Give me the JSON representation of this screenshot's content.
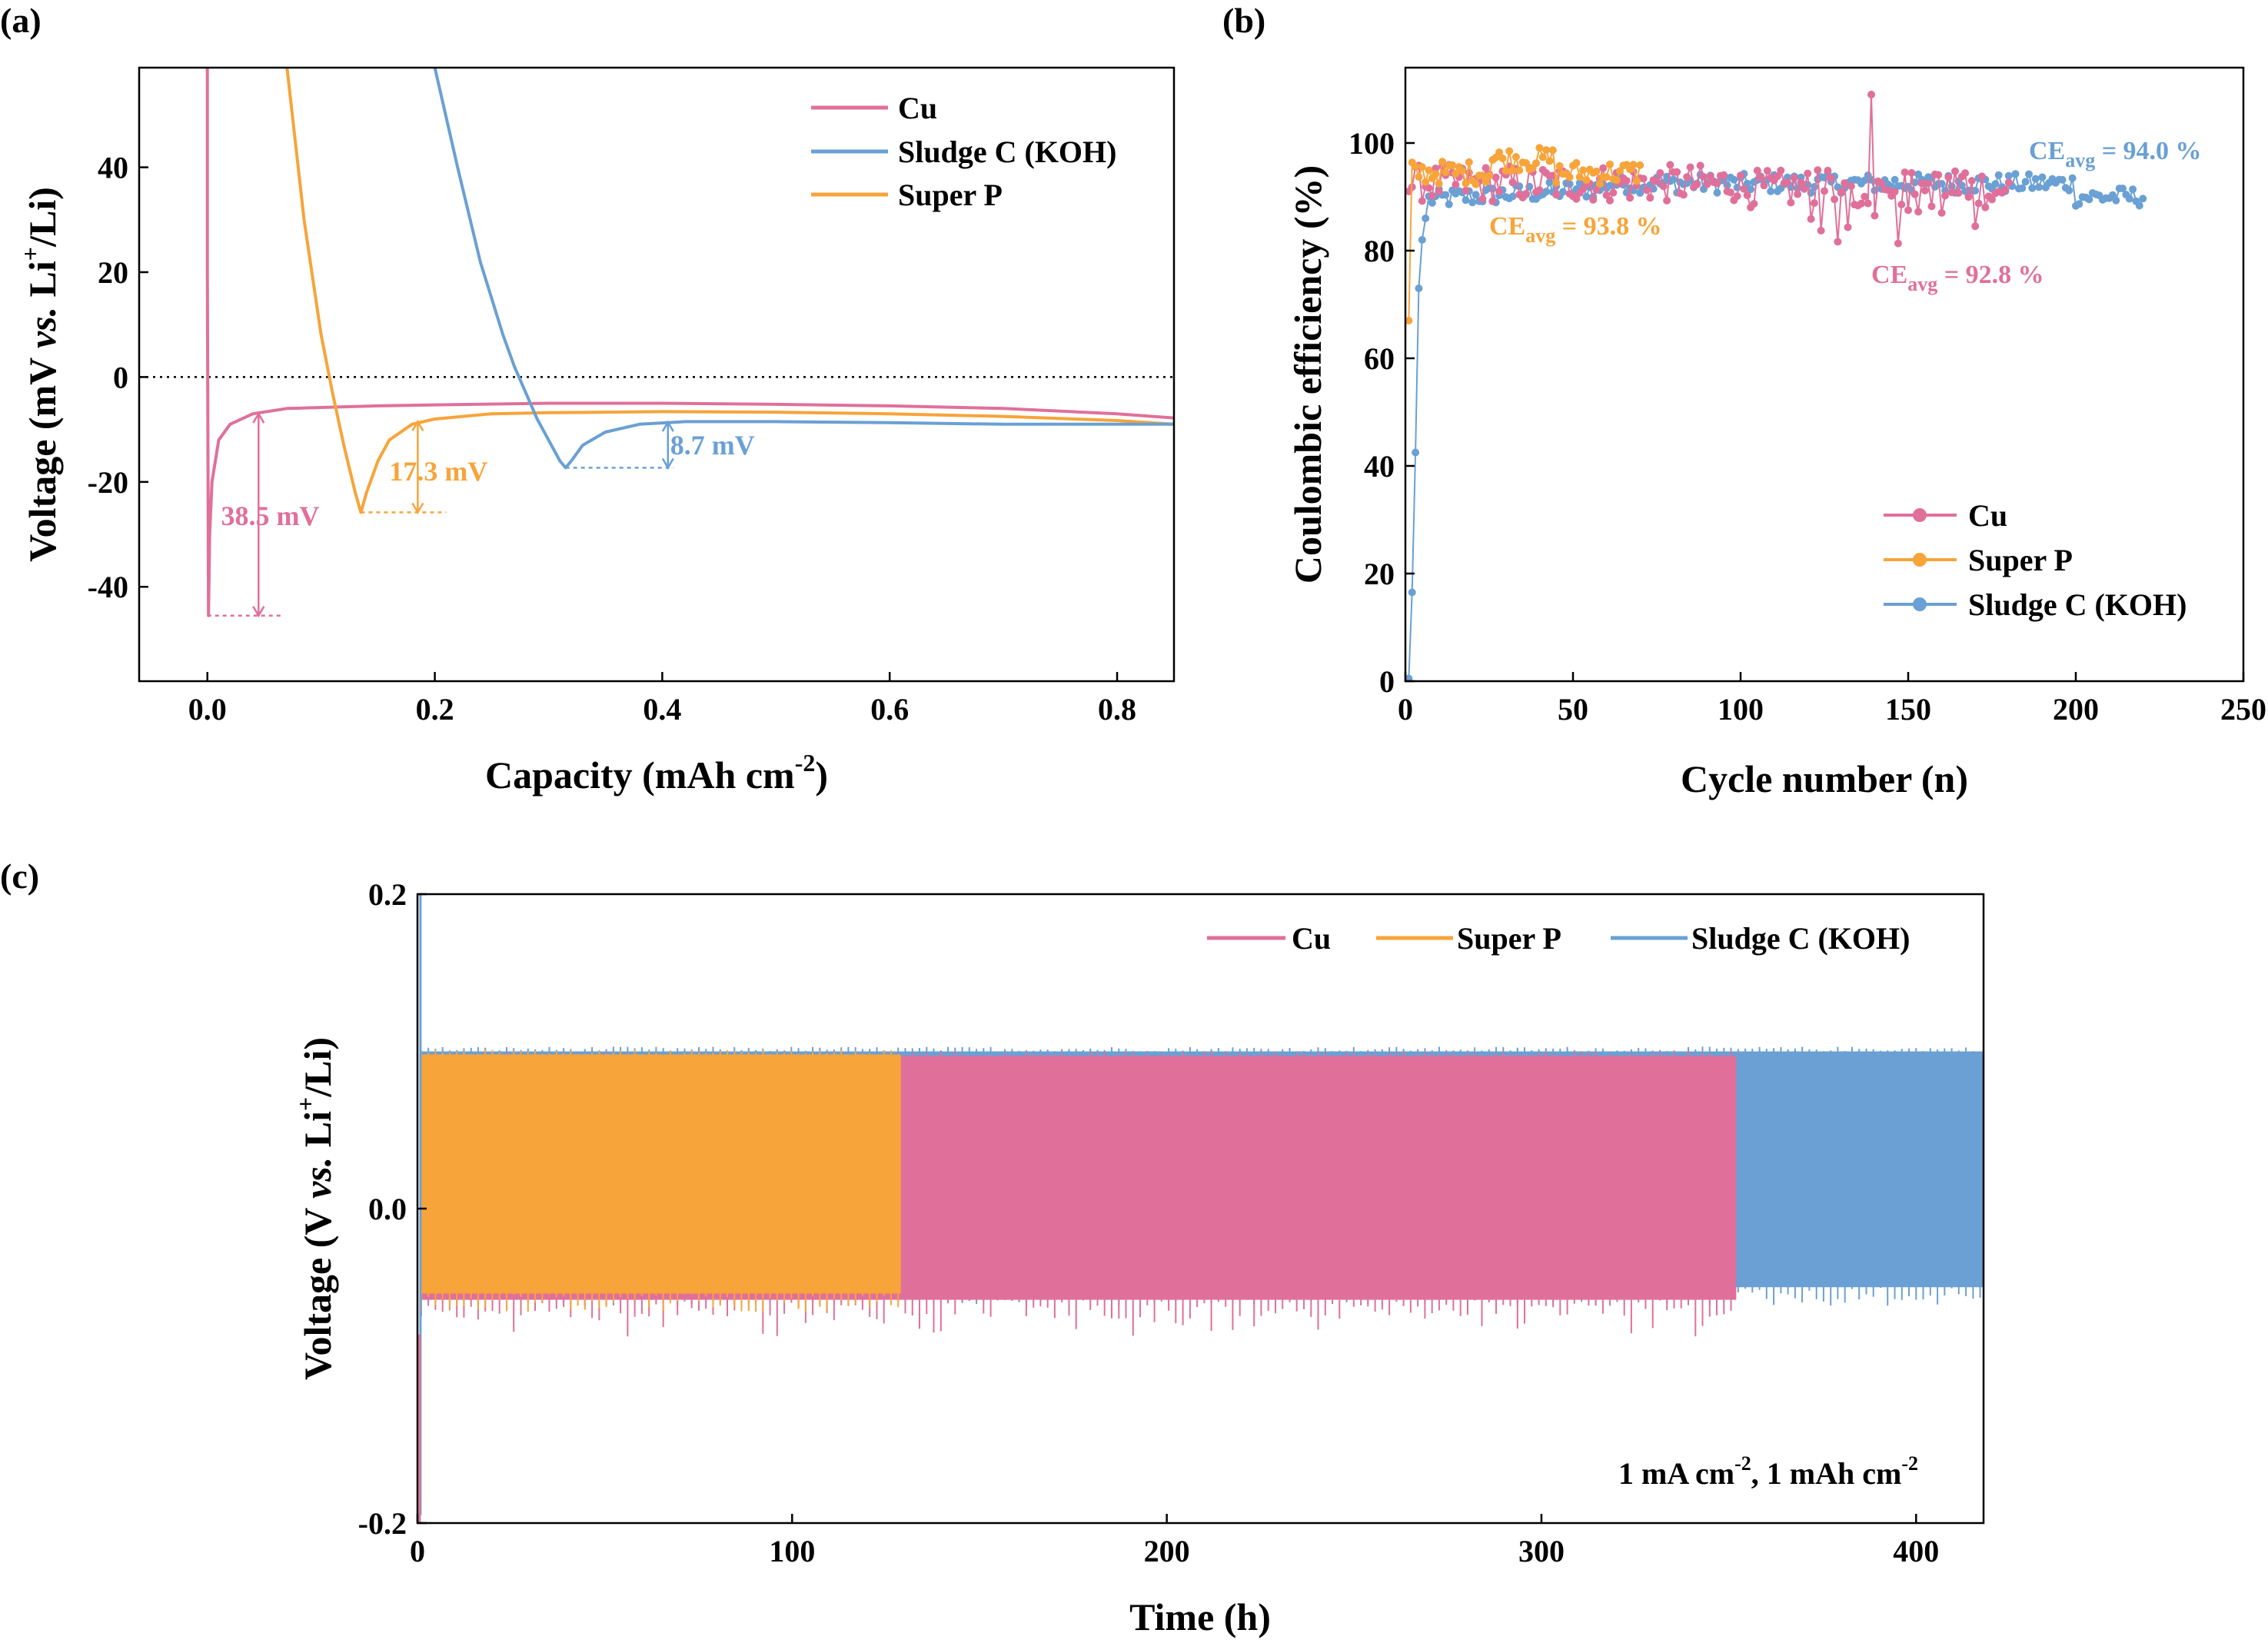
{
  "colors": {
    "cu": "#e0709a",
    "superp": "#f7a43a",
    "sludge": "#6aa0d4",
    "axis": "#000000",
    "zero_line": "#000000"
  },
  "chart_data": [
    {
      "panel": "(a)",
      "type": "line",
      "xlabel_main": "Capacity (mAh cm",
      "xlabel_sup": "-2",
      "xlabel_end": ")",
      "ylabel_main": "Voltage (mV ",
      "ylabel_vs": "vs.",
      "ylabel_li": " Li",
      "ylabel_sup": "+",
      "ylabel_end": "/Li)",
      "xlim": [
        -0.06,
        0.85
      ],
      "ylim": [
        -58,
        59
      ],
      "x_ticks": [
        0.0,
        0.2,
        0.4,
        0.6,
        0.8
      ],
      "x_tick_labels": [
        "0.0",
        "0.2",
        "0.4",
        "0.6",
        "0.8"
      ],
      "y_ticks": [
        -40,
        -20,
        0,
        20,
        40
      ],
      "y_tick_labels": [
        "-40",
        "-20",
        "0",
        "20",
        "40"
      ],
      "zero_line": true,
      "legend": {
        "position": "top-right",
        "entries": [
          "Cu",
          "Sludge C (KOH)",
          "Super P"
        ]
      },
      "series": [
        {
          "name": "Cu",
          "color_key": "cu",
          "x": [
            0.0,
            0.0,
            0.001,
            0.002,
            0.004,
            0.01,
            0.02,
            0.04,
            0.07,
            0.1,
            0.15,
            0.2,
            0.3,
            0.4,
            0.5,
            0.6,
            0.7,
            0.8,
            0.85
          ],
          "y": [
            59,
            20,
            -45.5,
            -30,
            -20,
            -12,
            -9,
            -7,
            -6,
            -5.8,
            -5.5,
            -5.3,
            -5.0,
            -5.0,
            -5.2,
            -5.5,
            -6.0,
            -7.0,
            -7.8
          ]
        },
        {
          "name": "Super P",
          "color_key": "superp",
          "x": [
            0.07,
            0.085,
            0.1,
            0.11,
            0.12,
            0.13,
            0.135,
            0.14,
            0.15,
            0.16,
            0.18,
            0.2,
            0.25,
            0.3,
            0.4,
            0.5,
            0.6,
            0.7,
            0.8,
            0.85
          ],
          "y": [
            59,
            30,
            8,
            -3,
            -13,
            -22,
            -25.8,
            -22,
            -16,
            -12,
            -9,
            -8,
            -7,
            -6.8,
            -6.6,
            -6.7,
            -7.0,
            -7.5,
            -8.3,
            -9.0
          ]
        },
        {
          "name": "Sludge C (KOH)",
          "color_key": "sludge",
          "x": [
            0.2,
            0.22,
            0.24,
            0.26,
            0.27,
            0.28,
            0.29,
            0.3,
            0.31,
            0.315,
            0.32,
            0.33,
            0.35,
            0.38,
            0.42,
            0.5,
            0.6,
            0.7,
            0.8,
            0.85
          ],
          "y": [
            59,
            40,
            22,
            8,
            2,
            -3,
            -8,
            -12,
            -16,
            -17.3,
            -16,
            -13,
            -10.5,
            -9,
            -8.5,
            -8.5,
            -8.7,
            -9.0,
            -9.0,
            -9.0
          ]
        }
      ],
      "annotations": [
        {
          "text": "38.5 mV",
          "color_key": "cu",
          "arrow_x": 0.045,
          "y_from": -7,
          "y_to": -45.5,
          "text_x": 0.012,
          "text_y": -26.5,
          "dotted_y": -45.5,
          "dotted_x": [
            0.0,
            0.065
          ]
        },
        {
          "text": "17.3 mV",
          "color_key": "superp",
          "arrow_x": 0.185,
          "y_from": -8.5,
          "y_to": -25.8,
          "text_x": 0.16,
          "text_y": -18,
          "dotted_y": -25.8,
          "dotted_x": [
            0.135,
            0.21
          ]
        },
        {
          "text": "8.7 mV",
          "color_key": "sludge",
          "arrow_x": 0.405,
          "y_from": -8.6,
          "y_to": -17.3,
          "text_x": 0.407,
          "text_y": -13,
          "dotted_y": -17.3,
          "dotted_x": [
            0.315,
            0.41
          ]
        }
      ]
    },
    {
      "panel": "(b)",
      "type": "scatter",
      "xlabel": "Cycle number (n)",
      "ylabel": "Coulombic efficiency (%)",
      "xlim": [
        0,
        250
      ],
      "ylim": [
        0,
        114
      ],
      "x_ticks": [
        0,
        50,
        100,
        150,
        200,
        250
      ],
      "x_tick_labels": [
        "0",
        "50",
        "100",
        "150",
        "200",
        "250"
      ],
      "y_ticks": [
        0,
        20,
        40,
        60,
        80,
        100
      ],
      "y_tick_labels": [
        "0",
        "20",
        "40",
        "60",
        "80",
        "100"
      ],
      "legend": {
        "position": "bottom-right",
        "entries": [
          "Cu",
          "Super P",
          "Sludge C (KOH)"
        ]
      },
      "series": [
        {
          "name": "Cu",
          "color_key": "cu",
          "n_cycles": 180,
          "mean": 92.8,
          "start": 91,
          "noise": 3.5,
          "spike": {
            "at": 139,
            "value": 109
          }
        },
        {
          "name": "Super P",
          "color_key": "superp",
          "n_cycles": 70,
          "mean": 93.8,
          "start": 67,
          "noise": 2.2
        },
        {
          "name": "Sludge C (KOH)",
          "color_key": "sludge",
          "n_cycles": 220,
          "mean": 94.0,
          "start_values": [
            0.5,
            16.5,
            42.5,
            73,
            82,
            86
          ],
          "noise": 1.8
        }
      ],
      "annotations": [
        {
          "pre": "CE",
          "sub": "avg",
          "post": " = 93.8 %",
          "color_key": "superp",
          "x": 25,
          "y": 83
        },
        {
          "pre": "CE",
          "sub": "avg",
          "post": " = 92.8 %",
          "color_key": "cu",
          "x": 139,
          "y": 74
        },
        {
          "pre": "CE",
          "sub": "avg",
          "post": " = 94.0 %",
          "color_key": "sludge",
          "x": 186,
          "y": 97
        }
      ]
    },
    {
      "panel": "(c)",
      "type": "line",
      "xlabel": "Time (h)",
      "ylabel_main": "Voltage (V ",
      "ylabel_vs": "vs.",
      "ylabel_li": " Li",
      "ylabel_sup": "+",
      "ylabel_end": "/Li)",
      "xlim": [
        0,
        418
      ],
      "ylim": [
        -0.2,
        0.2
      ],
      "x_ticks": [
        0,
        100,
        200,
        300,
        400
      ],
      "x_tick_labels": [
        "0",
        "100",
        "200",
        "300",
        "400"
      ],
      "y_ticks": [
        -0.2,
        0.0,
        0.2
      ],
      "y_tick_labels": [
        "-0.2",
        "0.0",
        "0.2"
      ],
      "legend": {
        "position": "top-right",
        "entries": [
          "Cu",
          "Super P",
          "Sludge C (KOH)"
        ]
      },
      "series": [
        {
          "name": "Sludge C (KOH)",
          "color_key": "sludge",
          "t_end": 418,
          "upper": 0.1,
          "lower": -0.05
        },
        {
          "name": "Cu",
          "color_key": "cu",
          "t_end": 352,
          "upper": 0.097,
          "lower": -0.058,
          "spike_min": -0.082
        },
        {
          "name": "Super P",
          "color_key": "superp",
          "t_end": 129,
          "upper": 0.098,
          "lower": -0.054
        }
      ],
      "condition_parts": [
        "1 mA cm",
        "-2",
        ", 1 mAh cm",
        "-2"
      ]
    }
  ]
}
